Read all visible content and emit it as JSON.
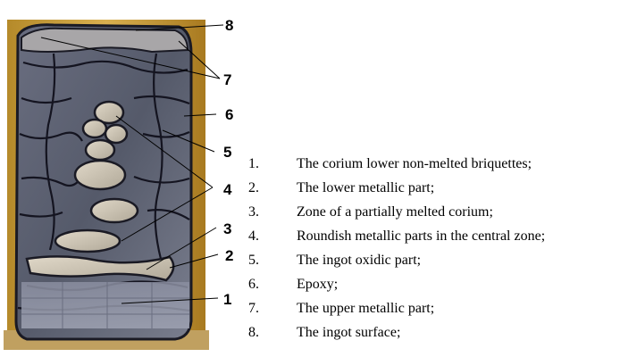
{
  "photo": {
    "colors": {
      "frame": "#c9a034",
      "oxide": "#5c6070",
      "metal": "#cfc6b6",
      "crack": "#141420"
    }
  },
  "callouts": [
    "8",
    "7",
    "6",
    "5",
    "4",
    "3",
    "2",
    "1"
  ],
  "legend": [
    {
      "num": "1.",
      "text": "The corium lower non-melted briquettes;"
    },
    {
      "num": "2.",
      "text": "The lower metallic part;"
    },
    {
      "num": "3.",
      "text": "Zone of a partially melted corium;"
    },
    {
      "num": "4.",
      "text": "Roundish metallic parts in the central zone;"
    },
    {
      "num": "5.",
      "text": "The ingot oxidic part;"
    },
    {
      "num": "6.",
      "text": "Epoxy;"
    },
    {
      "num": "7.",
      "text": "The upper metallic part;"
    },
    {
      "num": "8.",
      "text": "The ingot surface;"
    }
  ]
}
